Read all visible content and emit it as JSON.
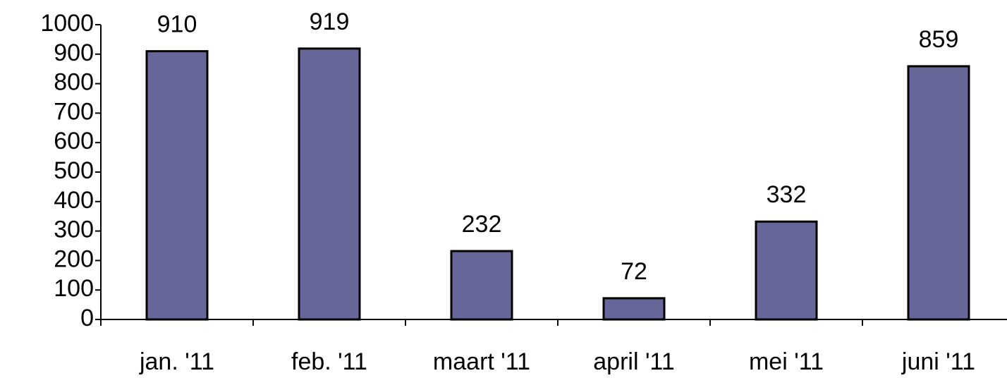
{
  "chart_data": {
    "type": "bar",
    "categories": [
      "jan. '11",
      "feb. '11",
      "maart '11",
      "april '11",
      "mei '11",
      "juni '11"
    ],
    "values": [
      910,
      919,
      232,
      72,
      332,
      859
    ],
    "color": "#666699",
    "ylim": [
      0,
      1000
    ],
    "yticks": [
      0,
      100,
      200,
      300,
      400,
      500,
      600,
      700,
      800,
      900,
      1000
    ],
    "grid": false
  }
}
